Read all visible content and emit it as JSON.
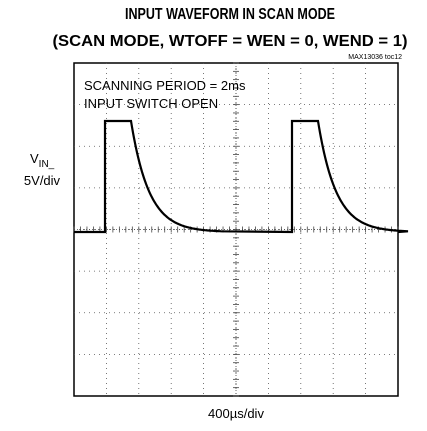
{
  "title": "INPUT WAVEFORM IN SCAN MODE",
  "subtitle": "(SCAN MODE, WTOFF = WEN = 0, WEND = 1)",
  "note": "MAX13036 toc12",
  "annotations": [
    "SCANNING PERIOD = 2ms",
    "INPUT SWITCH OPEN"
  ],
  "y_label": {
    "main": "V",
    "sub": "IN_",
    "scale": "5V/div"
  },
  "x_label": "400µs/div"
}
